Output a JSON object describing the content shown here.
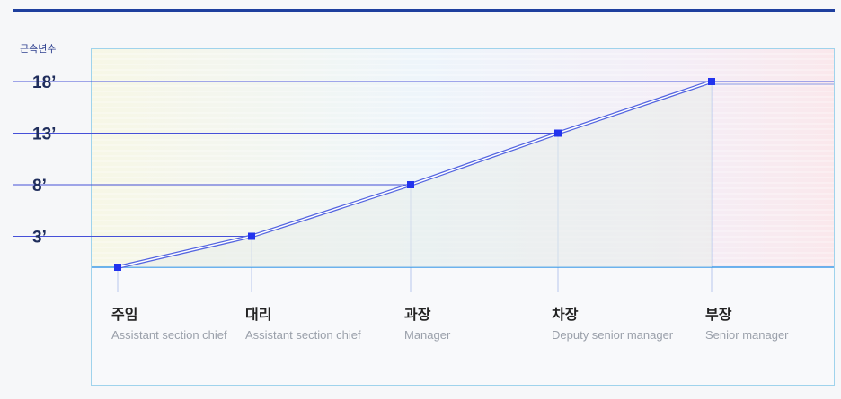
{
  "chart_data": {
    "type": "line",
    "ylabel": "근속년수",
    "y_ticks": [
      "3’",
      "8’",
      "13’",
      "18’"
    ],
    "ylim": [
      0,
      18
    ],
    "categories": [
      {
        "ko": "주임",
        "en": "Assistant section chief"
      },
      {
        "ko": "대리",
        "en": "Assistant section chief"
      },
      {
        "ko": "과장",
        "en": "Manager"
      },
      {
        "ko": "차장",
        "en": "Deputy senior manager"
      },
      {
        "ko": "부장",
        "en": "Senior manager"
      }
    ],
    "series": [
      {
        "values": [
          0,
          3,
          8,
          13,
          18
        ]
      }
    ],
    "grid": true
  },
  "colors": {
    "accent": "#1e3f9e",
    "line": "#3a4bd6",
    "marker": "#2233ee",
    "baseline": "#3d9be9",
    "ytext": "#1f2d5c"
  }
}
